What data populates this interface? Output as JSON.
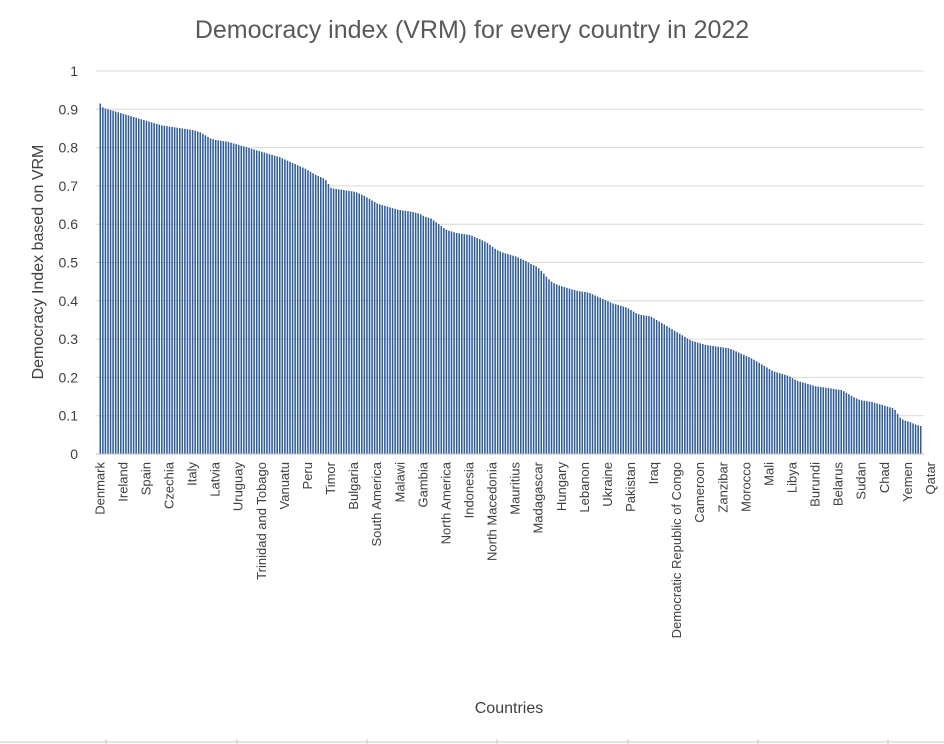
{
  "colors": {
    "bar": "#2e5b9a",
    "grid": "#d9d9d9"
  },
  "chart_data": {
    "type": "bar",
    "title": "Democracy index (VRM) for every country in 2022",
    "xlabel": "Countries",
    "ylabel": "Democracy Index based on VRM",
    "ylim": [
      0,
      1
    ],
    "yticks": [
      "0",
      "0.1",
      "0.2",
      "0.3",
      "0.4",
      "0.5",
      "0.6",
      "0.7",
      "0.8",
      "0.9",
      "1"
    ],
    "grid": true,
    "legend": "none",
    "category_labels": [
      {
        "label": "Denmark",
        "index": 0
      },
      {
        "label": "Ireland",
        "index": 9
      },
      {
        "label": "Spain",
        "index": 18
      },
      {
        "label": "Czechia",
        "index": 27
      },
      {
        "label": "Italy",
        "index": 36
      },
      {
        "label": "Latvia",
        "index": 45
      },
      {
        "label": "Uruguay",
        "index": 54
      },
      {
        "label": "Trinidad and Tobago",
        "index": 63
      },
      {
        "label": "Vanuatu",
        "index": 72
      },
      {
        "label": "Peru",
        "index": 81
      },
      {
        "label": "Timor",
        "index": 90
      },
      {
        "label": "Bulgaria",
        "index": 99
      },
      {
        "label": "South America",
        "index": 108
      },
      {
        "label": "Malawi",
        "index": 117
      },
      {
        "label": "Gambia",
        "index": 126
      },
      {
        "label": "North America",
        "index": 135
      },
      {
        "label": "Indonesia",
        "index": 144
      },
      {
        "label": "North Macedonia",
        "index": 153
      },
      {
        "label": "Mauritius",
        "index": 162
      },
      {
        "label": "Madagascar",
        "index": 171
      },
      {
        "label": "Hungary",
        "index": 180
      },
      {
        "label": "Lebanon",
        "index": 189
      },
      {
        "label": "Ukraine",
        "index": 198
      },
      {
        "label": "Pakistan",
        "index": 207
      },
      {
        "label": "Iraq",
        "index": 216
      },
      {
        "label": "Democratic Republic of Congo",
        "index": 225
      },
      {
        "label": "Cameroon",
        "index": 234
      },
      {
        "label": "Zanzibar",
        "index": 243
      },
      {
        "label": "Morocco",
        "index": 252
      },
      {
        "label": "Mali",
        "index": 261
      },
      {
        "label": "Libya",
        "index": 270
      },
      {
        "label": "Burundi",
        "index": 279
      },
      {
        "label": "Belarus",
        "index": 288
      },
      {
        "label": "Sudan",
        "index": 297
      },
      {
        "label": "Chad",
        "index": 306
      },
      {
        "label": "Yemen",
        "index": 315
      },
      {
        "label": "Qatar",
        "index": 324
      }
    ],
    "values": [
      0.915,
      0.905,
      0.902,
      0.9,
      0.898,
      0.896,
      0.894,
      0.892,
      0.89,
      0.888,
      0.886,
      0.884,
      0.882,
      0.88,
      0.878,
      0.876,
      0.874,
      0.872,
      0.87,
      0.868,
      0.866,
      0.864,
      0.862,
      0.86,
      0.858,
      0.857,
      0.856,
      0.855,
      0.854,
      0.853,
      0.852,
      0.851,
      0.85,
      0.849,
      0.848,
      0.847,
      0.846,
      0.844,
      0.842,
      0.84,
      0.836,
      0.832,
      0.828,
      0.824,
      0.822,
      0.82,
      0.819,
      0.818,
      0.817,
      0.816,
      0.815,
      0.813,
      0.811,
      0.809,
      0.807,
      0.805,
      0.803,
      0.801,
      0.799,
      0.797,
      0.795,
      0.793,
      0.791,
      0.789,
      0.787,
      0.785,
      0.783,
      0.781,
      0.779,
      0.777,
      0.775,
      0.772,
      0.769,
      0.766,
      0.763,
      0.76,
      0.757,
      0.754,
      0.751,
      0.748,
      0.745,
      0.741,
      0.737,
      0.733,
      0.729,
      0.726,
      0.723,
      0.72,
      0.715,
      0.705,
      0.695,
      0.693,
      0.692,
      0.691,
      0.69,
      0.689,
      0.688,
      0.687,
      0.686,
      0.685,
      0.683,
      0.68,
      0.677,
      0.674,
      0.67,
      0.666,
      0.662,
      0.658,
      0.654,
      0.652,
      0.65,
      0.648,
      0.646,
      0.644,
      0.642,
      0.64,
      0.638,
      0.637,
      0.636,
      0.635,
      0.634,
      0.633,
      0.632,
      0.63,
      0.628,
      0.626,
      0.622,
      0.619,
      0.617,
      0.615,
      0.61,
      0.605,
      0.6,
      0.595,
      0.59,
      0.586,
      0.583,
      0.581,
      0.579,
      0.577,
      0.576,
      0.575,
      0.574,
      0.573,
      0.572,
      0.57,
      0.567,
      0.564,
      0.561,
      0.558,
      0.555,
      0.551,
      0.546,
      0.541,
      0.536,
      0.532,
      0.529,
      0.526,
      0.524,
      0.522,
      0.52,
      0.518,
      0.516,
      0.513,
      0.51,
      0.507,
      0.504,
      0.5,
      0.496,
      0.493,
      0.49,
      0.485,
      0.478,
      0.471,
      0.463,
      0.456,
      0.45,
      0.446,
      0.443,
      0.44,
      0.438,
      0.436,
      0.434,
      0.432,
      0.43,
      0.428,
      0.426,
      0.425,
      0.424,
      0.423,
      0.422,
      0.42,
      0.417,
      0.414,
      0.411,
      0.408,
      0.405,
      0.402,
      0.399,
      0.396,
      0.393,
      0.391,
      0.389,
      0.387,
      0.385,
      0.383,
      0.38,
      0.376,
      0.372,
      0.368,
      0.365,
      0.363,
      0.362,
      0.361,
      0.36,
      0.358,
      0.354,
      0.35,
      0.346,
      0.342,
      0.338,
      0.334,
      0.33,
      0.326,
      0.322,
      0.318,
      0.314,
      0.31,
      0.306,
      0.302,
      0.298,
      0.295,
      0.293,
      0.291,
      0.289,
      0.287,
      0.285,
      0.284,
      0.283,
      0.282,
      0.281,
      0.28,
      0.279,
      0.278,
      0.277,
      0.276,
      0.274,
      0.271,
      0.268,
      0.265,
      0.262,
      0.259,
      0.256,
      0.253,
      0.25,
      0.246,
      0.242,
      0.238,
      0.234,
      0.23,
      0.226,
      0.222,
      0.218,
      0.215,
      0.213,
      0.211,
      0.209,
      0.207,
      0.205,
      0.202,
      0.198,
      0.194,
      0.191,
      0.189,
      0.187,
      0.185,
      0.183,
      0.181,
      0.179,
      0.177,
      0.176,
      0.175,
      0.174,
      0.173,
      0.172,
      0.171,
      0.17,
      0.169,
      0.168,
      0.167,
      0.164,
      0.16,
      0.156,
      0.152,
      0.148,
      0.145,
      0.142,
      0.14,
      0.139,
      0.138,
      0.137,
      0.136,
      0.134,
      0.132,
      0.13,
      0.128,
      0.126,
      0.124,
      0.122,
      0.12,
      0.115,
      0.105,
      0.095,
      0.09,
      0.087,
      0.085,
      0.083,
      0.08,
      0.077,
      0.075,
      0.073
    ]
  }
}
